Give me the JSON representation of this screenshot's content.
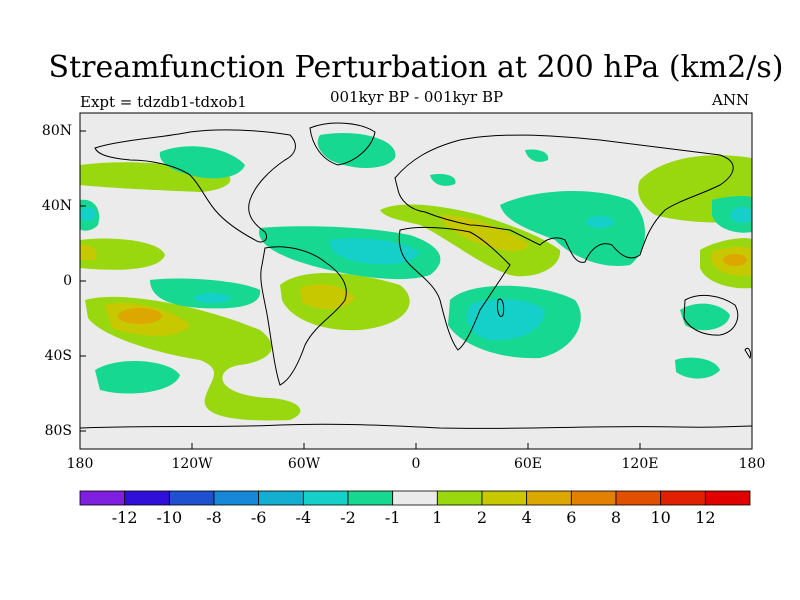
{
  "title": "Streamfunction Perturbation at 200 hPa (km2/s)",
  "subtitle": "001kyr BP - 001kyr BP",
  "left_string": "Expt = tdzdb1-tdxob1",
  "right_string": "ANN",
  "lat_labels": [
    "80N",
    "40N",
    "0",
    "40S",
    "80S"
  ],
  "lon_labels": [
    "180",
    "120W",
    "60W",
    "0",
    "60E",
    "120E",
    "180"
  ],
  "colorbar": {
    "labels": [
      "-12",
      "-10",
      "-8",
      "-6",
      "-4",
      "-2",
      "-1",
      "1",
      "2",
      "4",
      "6",
      "8",
      "10",
      "12"
    ],
    "colors": [
      "#7f1fe0",
      "#3010d8",
      "#1e50d0",
      "#1788d8",
      "#14aed0",
      "#14d0c8",
      "#17d890",
      "#ebebeb",
      "#99d80e",
      "#c8c800",
      "#dca800",
      "#e48000",
      "#e05000",
      "#e02000",
      "#e00000"
    ]
  },
  "colors": {
    "neutral": "#ebebeb",
    "c_minus1": "#17d890",
    "c_minus2": "#14d0c8",
    "c_plus1": "#99d80e",
    "c_plus2": "#c8c800",
    "c_plus4": "#dca800"
  },
  "chart_data": {
    "type": "heatmap",
    "title": "Streamfunction Perturbation at 200 hPa (km2/s)",
    "subtitle": "001kyr BP - 001kyr BP",
    "experiment": "Expt = tdzdb1-tdxob1",
    "season": "ANN",
    "xlim": [
      -180,
      180
    ],
    "ylim": [
      -90,
      90
    ],
    "contour_levels": [
      -12,
      -10,
      -8,
      -6,
      -4,
      -2,
      -1,
      1,
      2,
      4,
      6,
      8,
      10,
      12
    ]
  }
}
